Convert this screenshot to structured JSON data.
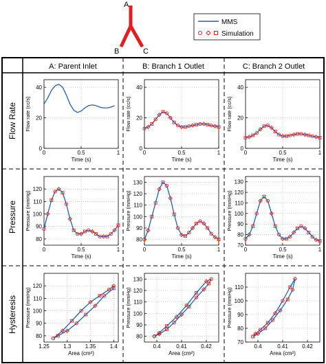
{
  "header": {
    "branch_labels": {
      "a": "A",
      "b": "B",
      "c": "C"
    },
    "legend": {
      "mms": "MMS",
      "simulation": "Simulation"
    },
    "colors": {
      "mms": "#1f5fb0",
      "simulation": "#e02020",
      "vessel": "#e02020"
    }
  },
  "columns": [
    "A: Parent Inlet",
    "B: Branch 1 Outlet",
    "C: Branch 2 Outlet"
  ],
  "rows": [
    "Flow Rate",
    "Pressure",
    "Hysteresis"
  ],
  "axis_text": {
    "flow_ylabel": "Flow rate (cc/s)",
    "pressure_ylabel": "Pressure (mmHg)",
    "time_xlabel": "Time (s)",
    "area_xlabel": "Area (cm²)"
  },
  "chart_data": [
    {
      "id": "flow-a",
      "type": "line",
      "xlim": [
        0,
        1
      ],
      "ylim": [
        0,
        45
      ],
      "xticks": [
        "0",
        "0.5",
        "1"
      ],
      "xtick_vals": [
        0,
        0.5,
        1
      ],
      "yticks": [
        "0",
        "20",
        "40"
      ],
      "ytick_vals": [
        0,
        20,
        40
      ],
      "grid": true,
      "series": [
        {
          "name": "MMS",
          "x": [
            0,
            0.05,
            0.1,
            0.15,
            0.2,
            0.25,
            0.3,
            0.35,
            0.4,
            0.45,
            0.5,
            0.55,
            0.6,
            0.65,
            0.7,
            0.75,
            0.8,
            0.85,
            0.9,
            0.95
          ],
          "y": [
            29,
            33,
            38,
            41,
            42,
            40,
            35,
            29,
            25,
            23.5,
            24.5,
            26.5,
            28,
            28.5,
            28,
            27,
            26.5,
            26.5,
            27,
            28
          ]
        }
      ]
    },
    {
      "id": "flow-b",
      "type": "line",
      "xlim": [
        0,
        1
      ],
      "ylim": [
        0,
        45
      ],
      "xticks": [
        "0",
        "0.5",
        "1"
      ],
      "xtick_vals": [
        0,
        0.5,
        1
      ],
      "yticks": [
        "0",
        "20",
        "40"
      ],
      "ytick_vals": [
        0,
        20,
        40
      ],
      "grid": true,
      "series": [
        {
          "name": "MMS",
          "x": [
            0,
            0.05,
            0.1,
            0.15,
            0.2,
            0.25,
            0.3,
            0.35,
            0.4,
            0.45,
            0.5,
            0.55,
            0.6,
            0.65,
            0.7,
            0.75,
            0.8,
            0.85,
            0.9,
            0.95,
            1
          ],
          "y": [
            13,
            14,
            16,
            19,
            22,
            24,
            23,
            20,
            17,
            15,
            14,
            14,
            14.5,
            15,
            15.5,
            16,
            16,
            15.5,
            15,
            14.5,
            14
          ]
        },
        {
          "name": "Simulation",
          "x": [
            0,
            0.05,
            0.1,
            0.15,
            0.2,
            0.25,
            0.3,
            0.35,
            0.4,
            0.45,
            0.5,
            0.55,
            0.6,
            0.65,
            0.7,
            0.75,
            0.8,
            0.85,
            0.9,
            0.95,
            1
          ],
          "y": [
            13,
            14,
            16,
            19,
            22,
            24,
            23,
            20,
            17,
            15,
            14,
            14,
            14.5,
            15,
            15.5,
            16,
            16,
            15.5,
            15,
            14.5,
            14
          ]
        }
      ]
    },
    {
      "id": "flow-c",
      "type": "line",
      "xlim": [
        0,
        1
      ],
      "ylim": [
        0,
        45
      ],
      "xticks": [
        "0",
        "0.5",
        "1"
      ],
      "xtick_vals": [
        0,
        0.5,
        1
      ],
      "yticks": [
        "0",
        "20",
        "40"
      ],
      "ytick_vals": [
        0,
        20,
        40
      ],
      "grid": true,
      "series": [
        {
          "name": "MMS",
          "x": [
            0,
            0.05,
            0.1,
            0.15,
            0.2,
            0.25,
            0.3,
            0.35,
            0.4,
            0.45,
            0.5,
            0.55,
            0.6,
            0.65,
            0.7,
            0.75,
            0.8,
            0.85,
            0.9,
            0.95,
            1
          ],
          "y": [
            7,
            7.5,
            8.5,
            10,
            12.5,
            14.5,
            15,
            13.5,
            11,
            9,
            8,
            8,
            8.5,
            9,
            9.5,
            9.5,
            9,
            8.5,
            8,
            7.5,
            7
          ]
        },
        {
          "name": "Simulation",
          "x": [
            0,
            0.05,
            0.1,
            0.15,
            0.2,
            0.25,
            0.3,
            0.35,
            0.4,
            0.45,
            0.5,
            0.55,
            0.6,
            0.65,
            0.7,
            0.75,
            0.8,
            0.85,
            0.9,
            0.95,
            1
          ],
          "y": [
            7,
            7.5,
            8.5,
            10,
            12.5,
            14.5,
            15,
            13.5,
            11,
            9,
            8,
            8,
            8.5,
            9,
            9.5,
            9.5,
            9,
            8.5,
            8,
            7.5,
            7
          ]
        }
      ]
    },
    {
      "id": "press-a",
      "type": "line",
      "xlim": [
        0,
        1
      ],
      "ylim": [
        75,
        130
      ],
      "xticks": [
        "0",
        "0.5",
        "1"
      ],
      "xtick_vals": [
        0,
        0.5,
        1
      ],
      "yticks": [
        "80",
        "90",
        "100",
        "110",
        "120"
      ],
      "ytick_vals": [
        80,
        90,
        100,
        110,
        120
      ],
      "grid": true,
      "series": [
        {
          "name": "MMS",
          "x": [
            0,
            0.05,
            0.1,
            0.15,
            0.2,
            0.25,
            0.3,
            0.35,
            0.4,
            0.45,
            0.5,
            0.55,
            0.6,
            0.65,
            0.7,
            0.75,
            0.8,
            0.85,
            0.9,
            0.95,
            1
          ],
          "y": [
            88,
            100,
            111,
            118,
            120,
            117,
            108,
            96,
            87,
            84,
            84,
            86,
            87,
            86,
            84,
            82,
            82,
            82,
            84,
            87,
            91
          ]
        },
        {
          "name": "Simulation",
          "x": [
            0,
            0.05,
            0.1,
            0.15,
            0.2,
            0.25,
            0.3,
            0.35,
            0.4,
            0.45,
            0.5,
            0.55,
            0.6,
            0.65,
            0.7,
            0.75,
            0.8,
            0.85,
            0.9,
            0.95,
            1
          ],
          "y": [
            88,
            100,
            111,
            118,
            120,
            117,
            108,
            96,
            87,
            84,
            84,
            86,
            87,
            86,
            84,
            82,
            82,
            82,
            84,
            87,
            91
          ]
        }
      ]
    },
    {
      "id": "press-b",
      "type": "line",
      "xlim": [
        0,
        1
      ],
      "ylim": [
        75,
        135
      ],
      "xticks": [
        "0",
        "0.5",
        "1"
      ],
      "xtick_vals": [
        0,
        0.5,
        1
      ],
      "yticks": [
        "80",
        "90",
        "100",
        "110",
        "120",
        "130"
      ],
      "ytick_vals": [
        80,
        90,
        100,
        110,
        120,
        130
      ],
      "grid": true,
      "series": [
        {
          "name": "MMS",
          "x": [
            0,
            0.05,
            0.1,
            0.15,
            0.2,
            0.25,
            0.3,
            0.35,
            0.4,
            0.45,
            0.5,
            0.55,
            0.6,
            0.65,
            0.7,
            0.75,
            0.8,
            0.85,
            0.9,
            0.95,
            1
          ],
          "y": [
            80,
            88,
            100,
            112,
            124,
            130,
            127,
            116,
            102,
            90,
            84,
            83,
            86,
            90,
            94,
            96,
            94,
            90,
            85,
            82,
            80
          ]
        },
        {
          "name": "Simulation",
          "x": [
            0,
            0.05,
            0.1,
            0.15,
            0.2,
            0.25,
            0.3,
            0.35,
            0.4,
            0.45,
            0.5,
            0.55,
            0.6,
            0.65,
            0.7,
            0.75,
            0.8,
            0.85,
            0.9,
            0.95,
            1
          ],
          "y": [
            80,
            88,
            100,
            112,
            124,
            130,
            127,
            116,
            102,
            90,
            84,
            83,
            86,
            90,
            94,
            96,
            94,
            90,
            85,
            82,
            80
          ]
        }
      ]
    },
    {
      "id": "press-c",
      "type": "line",
      "xlim": [
        0,
        1
      ],
      "ylim": [
        70,
        135
      ],
      "xticks": [
        "0",
        "0.5",
        "1"
      ],
      "xtick_vals": [
        0,
        0.5,
        1
      ],
      "yticks": [
        "70",
        "80",
        "90",
        "100",
        "110",
        "120",
        "130"
      ],
      "ytick_vals": [
        70,
        80,
        90,
        100,
        110,
        120,
        130
      ],
      "grid": true,
      "series": [
        {
          "name": "MMS",
          "x": [
            0,
            0.05,
            0.1,
            0.15,
            0.2,
            0.25,
            0.3,
            0.35,
            0.4,
            0.45,
            0.5,
            0.55,
            0.6,
            0.65,
            0.7,
            0.75,
            0.8,
            0.85,
            0.9,
            0.95,
            1
          ],
          "y": [
            76,
            80,
            88,
            100,
            112,
            116,
            112,
            100,
            88,
            80,
            76,
            76,
            78,
            82,
            86,
            88,
            86,
            82,
            78,
            75,
            74
          ]
        },
        {
          "name": "Simulation",
          "x": [
            0,
            0.05,
            0.1,
            0.15,
            0.2,
            0.25,
            0.3,
            0.35,
            0.4,
            0.45,
            0.5,
            0.55,
            0.6,
            0.65,
            0.7,
            0.75,
            0.8,
            0.85,
            0.9,
            0.95,
            1
          ],
          "y": [
            76,
            80,
            88,
            100,
            112,
            116,
            112,
            100,
            88,
            80,
            76,
            76,
            78,
            82,
            86,
            88,
            86,
            82,
            78,
            75,
            74
          ]
        }
      ]
    },
    {
      "id": "hyst-a",
      "type": "line",
      "xlim": [
        1.25,
        1.41
      ],
      "ylim": [
        75,
        130
      ],
      "xticks": [
        "1.25",
        "1.3",
        "1.35",
        "1.4"
      ],
      "xtick_vals": [
        1.25,
        1.3,
        1.35,
        1.4
      ],
      "yticks": [
        "80",
        "90",
        "100",
        "110",
        "120"
      ],
      "ytick_vals": [
        80,
        90,
        100,
        110,
        120
      ],
      "grid": true,
      "series": [
        {
          "name": "MMS",
          "x": [
            1.27,
            1.29,
            1.31,
            1.33,
            1.35,
            1.37,
            1.39,
            1.4,
            1.4,
            1.38,
            1.36,
            1.34,
            1.32,
            1.3,
            1.28,
            1.27
          ],
          "y": [
            78,
            84,
            92,
            100,
            107,
            112,
            117,
            120,
            118,
            112,
            104,
            97,
            90,
            84,
            80,
            78
          ]
        },
        {
          "name": "Simulation",
          "x": [
            1.27,
            1.29,
            1.31,
            1.33,
            1.35,
            1.37,
            1.39,
            1.4,
            1.4,
            1.38,
            1.36,
            1.34,
            1.32,
            1.3,
            1.28,
            1.27
          ],
          "y": [
            78,
            84,
            92,
            100,
            107,
            112,
            117,
            120,
            118,
            112,
            104,
            97,
            90,
            84,
            80,
            78
          ]
        }
      ]
    },
    {
      "id": "hyst-b",
      "type": "line",
      "xlim": [
        0.395,
        0.425
      ],
      "ylim": [
        75,
        135
      ],
      "xticks": [
        "0.4",
        "0.41",
        "0.42"
      ],
      "xtick_vals": [
        0.4,
        0.41,
        0.42
      ],
      "yticks": [
        "80",
        "90",
        "100",
        "110",
        "120",
        "130"
      ],
      "ytick_vals": [
        80,
        90,
        100,
        110,
        120,
        130
      ],
      "grid": true,
      "series": [
        {
          "name": "MMS",
          "x": [
            0.399,
            0.401,
            0.404,
            0.407,
            0.41,
            0.413,
            0.416,
            0.419,
            0.421,
            0.422,
            0.42,
            0.416,
            0.412,
            0.408,
            0.404,
            0.401,
            0.399
          ],
          "y": [
            80,
            82,
            86,
            92,
            99,
            106,
            114,
            121,
            126,
            130,
            128,
            118,
            107,
            97,
            89,
            83,
            80
          ]
        },
        {
          "name": "Simulation",
          "x": [
            0.399,
            0.401,
            0.404,
            0.407,
            0.41,
            0.413,
            0.416,
            0.419,
            0.421,
            0.422,
            0.42,
            0.416,
            0.412,
            0.408,
            0.404,
            0.401,
            0.399
          ],
          "y": [
            80,
            82,
            86,
            92,
            99,
            106,
            114,
            121,
            126,
            130,
            128,
            118,
            107,
            97,
            89,
            83,
            80
          ]
        }
      ]
    },
    {
      "id": "hyst-c",
      "type": "line",
      "xlim": [
        0.395,
        0.425
      ],
      "ylim": [
        70,
        120
      ],
      "xticks": [
        "0.4",
        "0.41",
        "0.42"
      ],
      "xtick_vals": [
        0.4,
        0.41,
        0.42
      ],
      "yticks": [
        "70",
        "80",
        "90",
        "100",
        "110"
      ],
      "ytick_vals": [
        70,
        80,
        90,
        100,
        110
      ],
      "grid": true,
      "series": [
        {
          "name": "MMS",
          "x": [
            0.398,
            0.4,
            0.403,
            0.406,
            0.409,
            0.412,
            0.414,
            0.415,
            0.413,
            0.41,
            0.407,
            0.404,
            0.401,
            0.399,
            0.398
          ],
          "y": [
            74,
            76,
            80,
            86,
            93,
            101,
            108,
            116,
            110,
            100,
            91,
            84,
            79,
            76,
            74
          ]
        },
        {
          "name": "Simulation",
          "x": [
            0.398,
            0.4,
            0.403,
            0.406,
            0.409,
            0.412,
            0.414,
            0.415,
            0.413,
            0.41,
            0.407,
            0.404,
            0.401,
            0.399,
            0.398
          ],
          "y": [
            74,
            76,
            80,
            86,
            93,
            101,
            108,
            116,
            110,
            100,
            91,
            84,
            79,
            76,
            74
          ]
        }
      ]
    }
  ]
}
